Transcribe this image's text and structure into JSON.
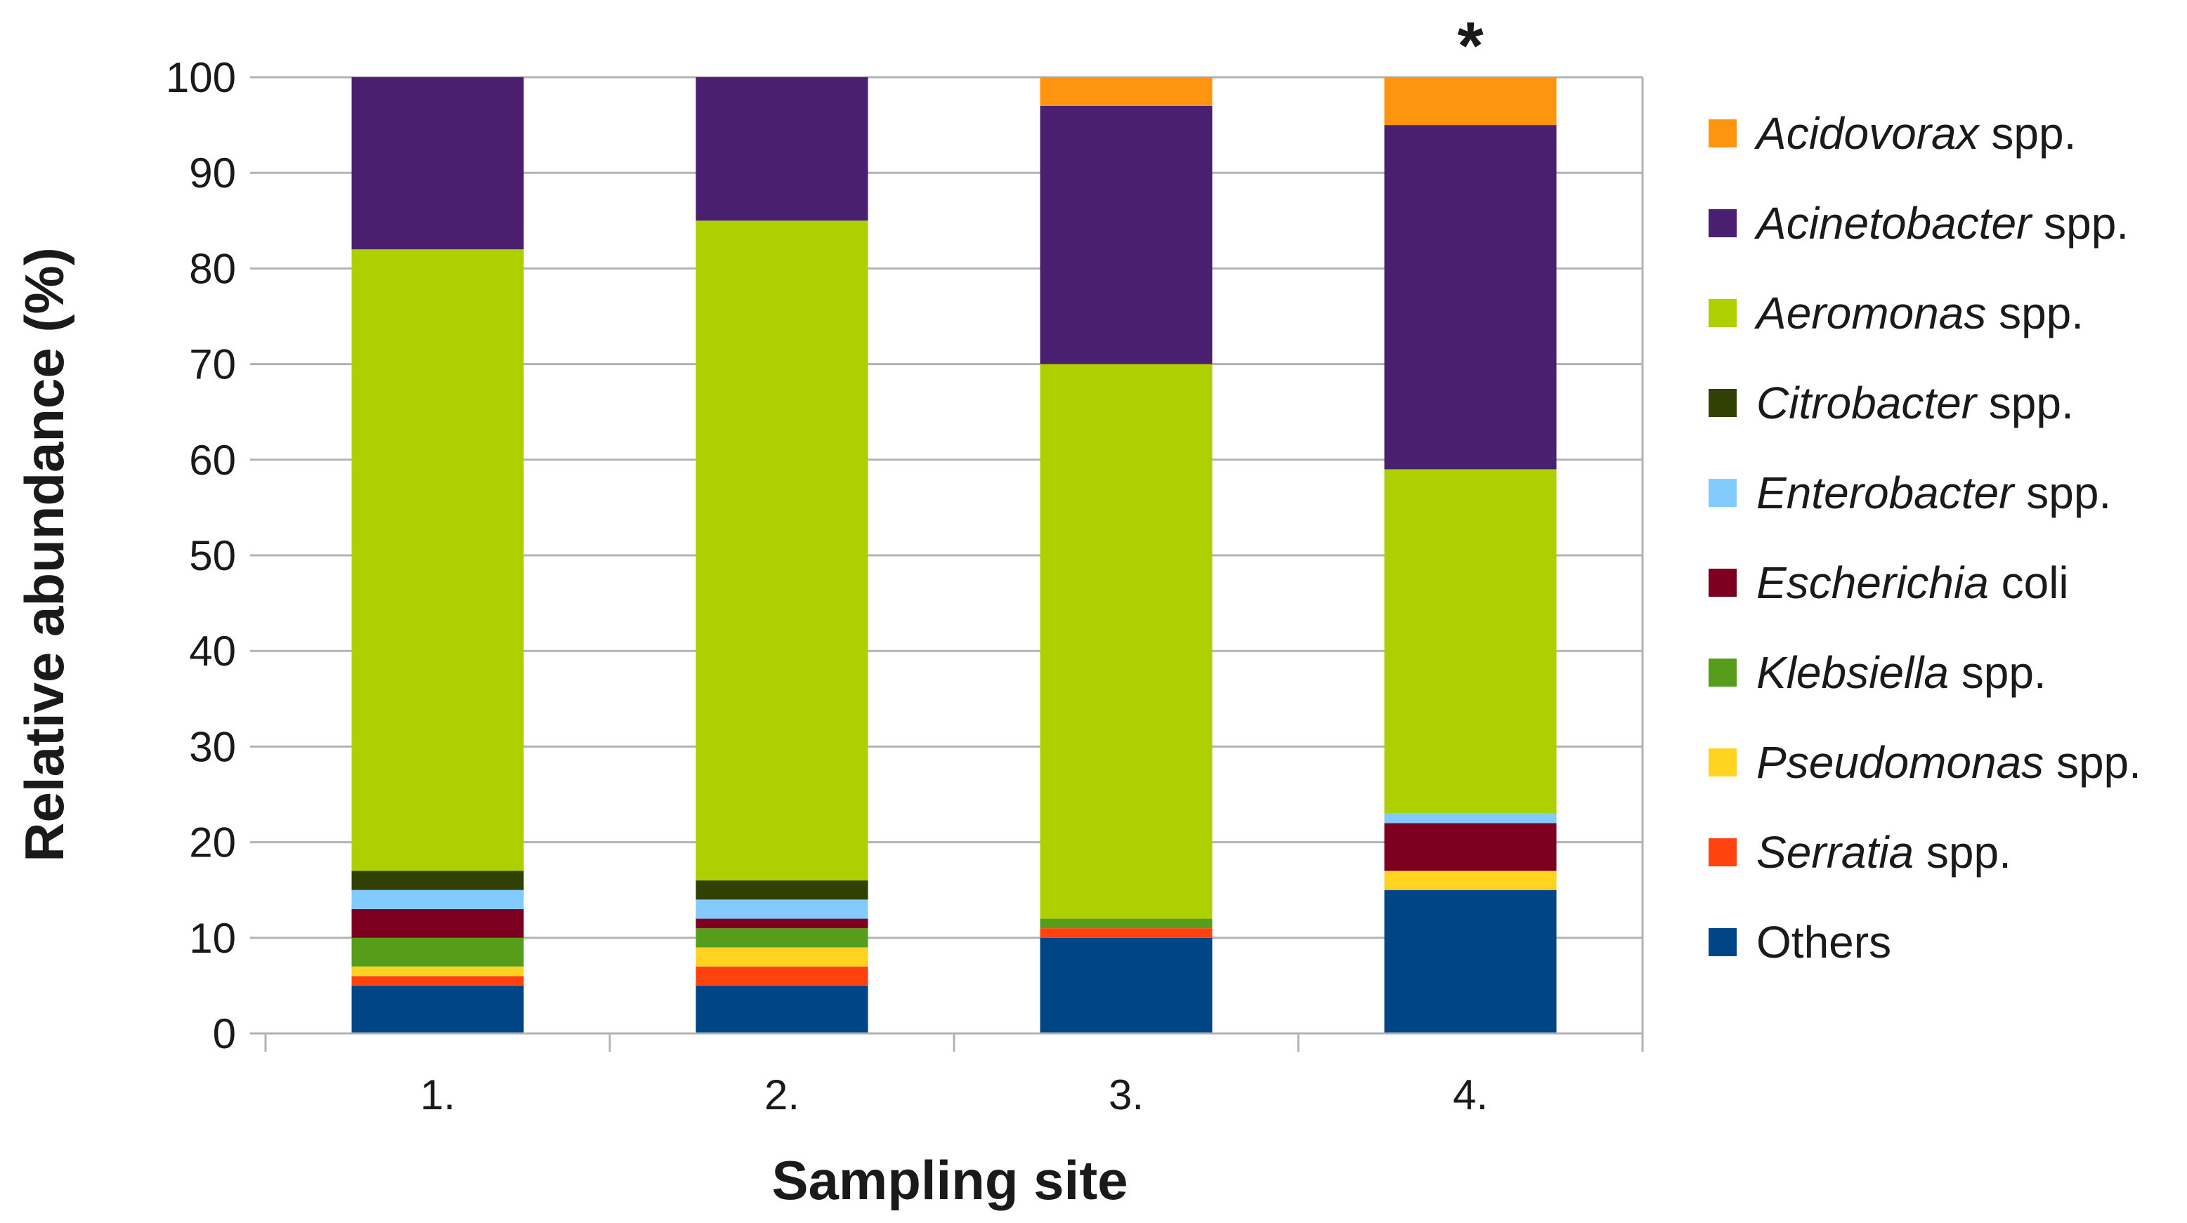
{
  "chart_data": {
    "type": "bar",
    "stacked": true,
    "title": "",
    "xlabel": "Sampling site",
    "ylabel": "Relative abundance (%)",
    "ylim": [
      0,
      100
    ],
    "yticks": [
      0,
      10,
      20,
      30,
      40,
      50,
      60,
      70,
      80,
      90,
      100
    ],
    "grid": true,
    "legend_position": "right",
    "categories": [
      "1.",
      "2.",
      "3.",
      "4."
    ],
    "series": [
      {
        "name": "Others",
        "italic": "",
        "suffix": "Others",
        "color": "#004586",
        "values": [
          5,
          5,
          10,
          15
        ]
      },
      {
        "name": "Serratia spp.",
        "italic": "Serratia",
        "suffix": " spp.",
        "color": "#ff420e",
        "values": [
          1,
          2,
          1,
          0
        ]
      },
      {
        "name": "Pseudomonas spp.",
        "italic": "Pseudomonas",
        "suffix": " spp.",
        "color": "#ffd320",
        "values": [
          1,
          2,
          0,
          2
        ]
      },
      {
        "name": "Klebsiella spp.",
        "italic": "Klebsiella",
        "suffix": " spp.",
        "color": "#579d1c",
        "values": [
          3,
          2,
          1,
          0
        ]
      },
      {
        "name": "Escherichia coli",
        "italic": "Escherichia",
        "suffix": " coli",
        "color": "#7e0021",
        "values": [
          3,
          1,
          0,
          5
        ]
      },
      {
        "name": "Enterobacter spp.",
        "italic": "Enterobacter",
        "suffix": " spp.",
        "color": "#83caff",
        "values": [
          2,
          2,
          0,
          1
        ]
      },
      {
        "name": "Citrobacter spp.",
        "italic": "Citrobacter",
        "suffix": " spp.",
        "color": "#314004",
        "values": [
          2,
          2,
          0,
          0
        ]
      },
      {
        "name": "Aeromonas spp.",
        "italic": "Aeromonas",
        "suffix": " spp.",
        "color": "#aecf00",
        "values": [
          65,
          69,
          58,
          36
        ]
      },
      {
        "name": "Acinetobacter spp.",
        "italic": "Acinetobacter",
        "suffix": " spp.",
        "color": "#4b1f6f",
        "values": [
          18,
          15,
          27,
          36
        ]
      },
      {
        "name": "Acidovorax spp.",
        "italic": "Acidovorax",
        "suffix": " spp.",
        "color": "#ff950e",
        "values": [
          0,
          0,
          3,
          5
        ]
      }
    ],
    "annotations": [
      {
        "category": "4.",
        "text": "*"
      }
    ]
  }
}
